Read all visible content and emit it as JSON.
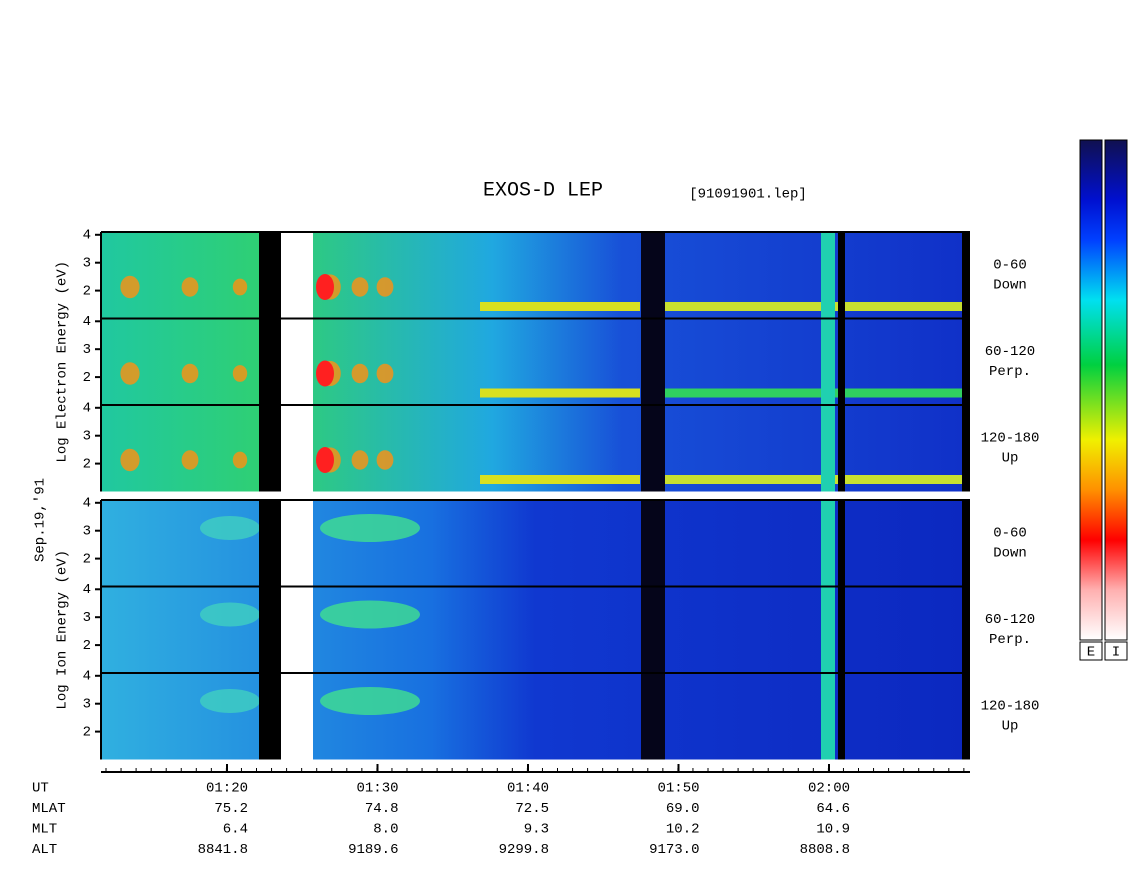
{
  "chart_data": {
    "type": "spectrogram",
    "title": "EXOS-D LEP",
    "file": "[91091901.lep]",
    "date": "Sep.19,'91",
    "ylim": [
      1,
      4.1
    ],
    "groups": [
      {
        "ylabel": "Log Electron Energy (eV)",
        "panels": [
          {
            "label": [
              "0-60",
              "Down"
            ],
            "yticks": [
              2,
              3,
              4
            ]
          },
          {
            "label": [
              "60-120",
              "Perp."
            ],
            "yticks": [
              2,
              3,
              4
            ]
          },
          {
            "label": [
              "120-180",
              "Up"
            ],
            "yticks": [
              2,
              3,
              4
            ]
          }
        ]
      },
      {
        "ylabel": "Log Ion Energy (eV)",
        "panels": [
          {
            "label": [
              "0-60",
              "Down"
            ],
            "yticks": [
              2,
              3,
              4
            ]
          },
          {
            "label": [
              "60-120",
              "Perp."
            ],
            "yticks": [
              2,
              3,
              4
            ]
          },
          {
            "label": [
              "120-180",
              "Up"
            ],
            "yticks": [
              2,
              3,
              4
            ]
          }
        ]
      }
    ],
    "ephemeris": {
      "labels": [
        "UT",
        "MLAT",
        "MLT",
        "ALT"
      ],
      "columns": [
        [
          "01:20",
          "75.2",
          "6.4",
          "8841.8"
        ],
        [
          "01:30",
          "74.8",
          "8.0",
          "9189.6"
        ],
        [
          "01:40",
          "72.5",
          "9.3",
          "9299.8"
        ],
        [
          "01:50",
          "69.0",
          "10.2",
          "9173.0"
        ],
        [
          "02:00",
          "64.6",
          "10.9",
          "8808.8"
        ]
      ]
    },
    "colorbar_labels": [
      "E",
      "I"
    ]
  }
}
